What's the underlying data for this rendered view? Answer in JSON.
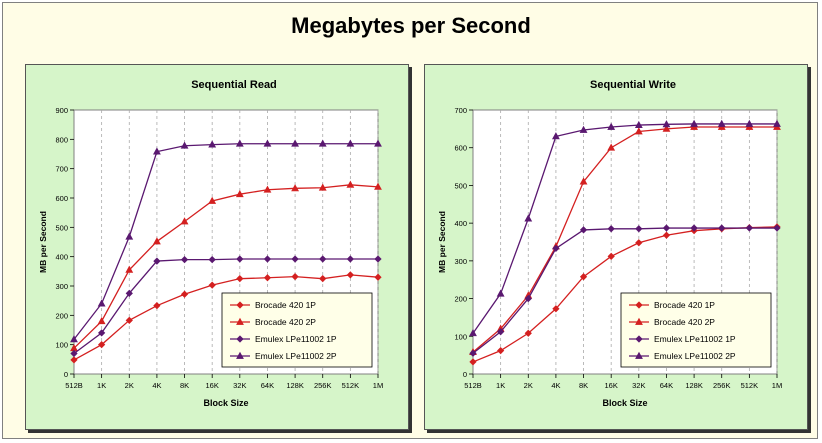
{
  "main_title": "Megabytes per Second",
  "colors": {
    "frame_bg": "#fffde6",
    "panel_bg": "#d6f5c9",
    "plot_bg": "#ffffff",
    "red": "#d42020",
    "purple": "#5a1870"
  },
  "chart_data": [
    {
      "id": "read",
      "type": "line",
      "title": "Sequential Read",
      "xlabel": "Block Size",
      "ylabel": "MB per Second",
      "ylim": [
        0,
        900
      ],
      "yticks": [
        0,
        100,
        200,
        300,
        400,
        500,
        600,
        700,
        800,
        900
      ],
      "categories": [
        "512B",
        "1K",
        "2K",
        "4K",
        "8K",
        "16K",
        "32K",
        "64K",
        "128K",
        "256K",
        "512K",
        "1M"
      ],
      "legend_position": "bottom-right",
      "series": [
        {
          "name": "Brocade 420 1P",
          "color": "#d42020",
          "marker": "diamond",
          "values": [
            48,
            100,
            183,
            233,
            272,
            303,
            325,
            328,
            332,
            325,
            338,
            330
          ]
        },
        {
          "name": "Brocade 420 2P",
          "color": "#d42020",
          "marker": "triangle",
          "values": [
            88,
            180,
            355,
            452,
            520,
            590,
            613,
            628,
            633,
            635,
            645,
            638
          ]
        },
        {
          "name": "Emulex LPe11002 1P",
          "color": "#5a1870",
          "marker": "diamond",
          "values": [
            70,
            140,
            275,
            385,
            390,
            390,
            392,
            392,
            392,
            392,
            392,
            392
          ]
        },
        {
          "name": "Emulex LPe11002 2P",
          "color": "#5a1870",
          "marker": "triangle",
          "values": [
            118,
            240,
            468,
            758,
            778,
            782,
            785,
            785,
            785,
            785,
            785,
            785
          ]
        }
      ]
    },
    {
      "id": "write",
      "type": "line",
      "title": "Sequential Write",
      "xlabel": "Block Size",
      "ylabel": "MB per Second",
      "ylim": [
        0,
        700
      ],
      "yticks": [
        0,
        100,
        200,
        300,
        400,
        500,
        600,
        700
      ],
      "categories": [
        "512B",
        "1K",
        "2K",
        "4K",
        "8K",
        "16K",
        "32K",
        "64K",
        "128K",
        "256K",
        "512K",
        "1M"
      ],
      "legend_position": "bottom-right",
      "series": [
        {
          "name": "Brocade 420 1P",
          "color": "#d42020",
          "marker": "diamond",
          "values": [
            32,
            62,
            108,
            173,
            258,
            312,
            348,
            368,
            380,
            385,
            388,
            390
          ]
        },
        {
          "name": "Brocade 420 2P",
          "color": "#d42020",
          "marker": "triangle",
          "values": [
            58,
            120,
            208,
            338,
            510,
            600,
            643,
            650,
            655,
            655,
            655,
            655
          ]
        },
        {
          "name": "Emulex LPe11002 1P",
          "color": "#5a1870",
          "marker": "diamond",
          "values": [
            55,
            112,
            200,
            333,
            382,
            385,
            385,
            387,
            387,
            387,
            387,
            387
          ]
        },
        {
          "name": "Emulex LPe11002 2P",
          "color": "#5a1870",
          "marker": "triangle",
          "values": [
            108,
            213,
            412,
            630,
            647,
            655,
            660,
            662,
            663,
            663,
            663,
            663
          ]
        }
      ]
    }
  ]
}
